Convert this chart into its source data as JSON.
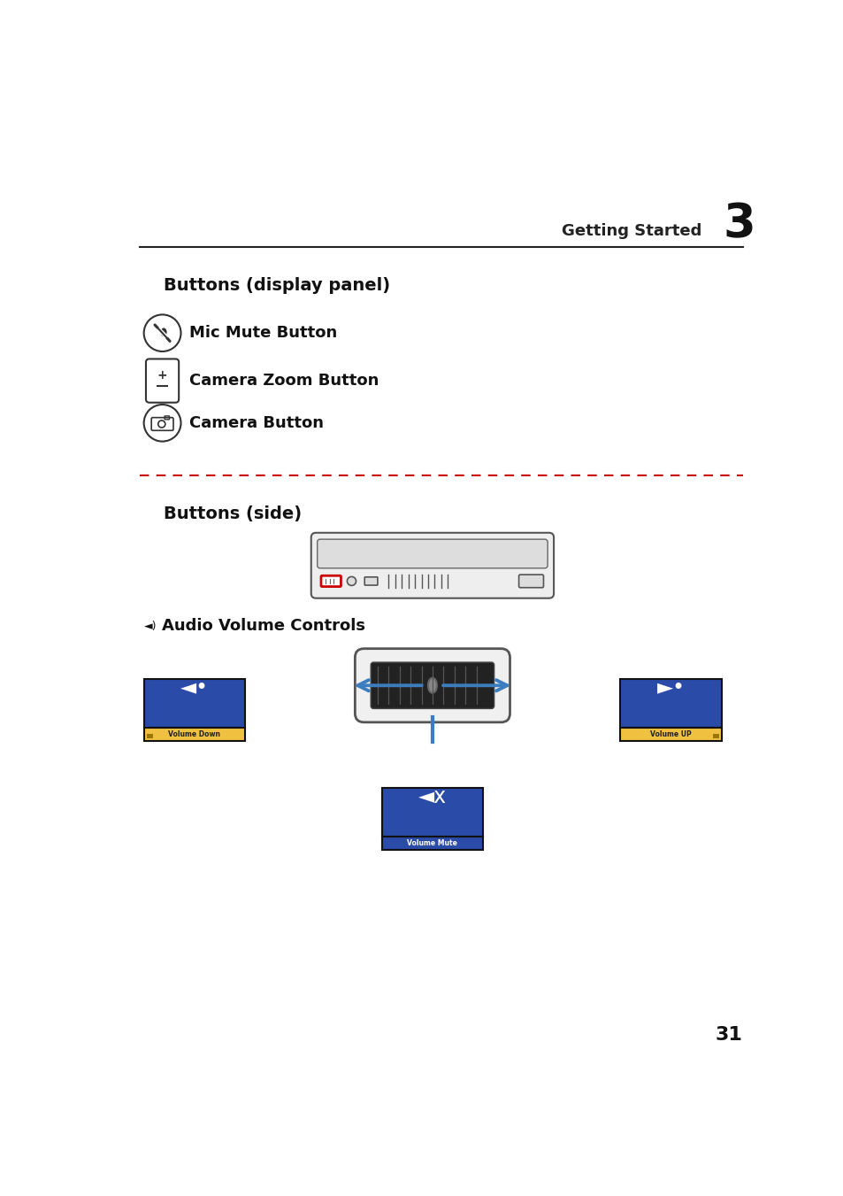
{
  "bg_color": "#ffffff",
  "page_width": 9.54,
  "page_height": 13.51,
  "header_text": "Getting Started",
  "header_number": "3",
  "section1_title": "Buttons (display panel)",
  "section2_title": "Buttons (side)",
  "mic_mute_label": "Mic Mute Button",
  "camera_zoom_label": "Camera Zoom Button",
  "camera_label": "Camera Button",
  "audio_label": "Audio Volume Controls",
  "page_number": "31",
  "blue_color": "#2B4BA8",
  "yellow_color": "#F0C040",
  "red_color": "#CC0000",
  "arrow_color": "#3B7DBF",
  "volume_down_label": "Volume Down",
  "volume_up_label": "Volume UP",
  "volume_mute_label": "Volume Mute"
}
